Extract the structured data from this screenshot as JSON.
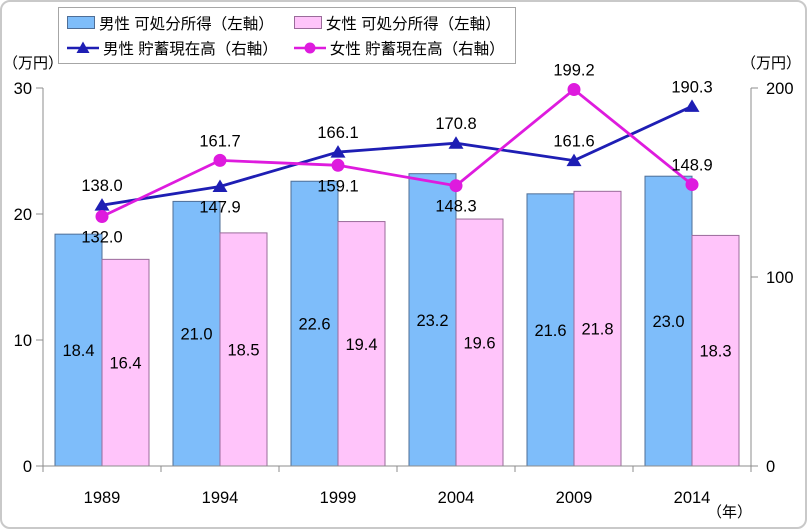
{
  "frame": {
    "border_color": "#c9c9c9",
    "background": "#ffffff"
  },
  "legend": {
    "items": [
      {
        "label": "男性 可処分所得（左軸）",
        "type": "bar",
        "fill": "#7EBDFA",
        "border": "#4F6E96"
      },
      {
        "label": "女性 可処分所得（左軸）",
        "type": "bar",
        "fill": "#FFC4FA",
        "border": "#9A6B9A"
      },
      {
        "label": "男性 貯蓄現在高（右軸）",
        "type": "line",
        "marker": "triangle",
        "color": "#1E1EB4"
      },
      {
        "label": "女性 貯蓄現在高（右軸）",
        "type": "line",
        "marker": "circle",
        "color": "#DE1BDE"
      }
    ]
  },
  "axes": {
    "left_unit": "（万円）",
    "right_unit": "（万円）",
    "x_unit": "（年）",
    "left_ticks": [
      0,
      10,
      20,
      30
    ],
    "right_ticks": [
      0,
      100,
      200
    ],
    "axis_color": "#8c8c8c",
    "text_color": "#000000"
  },
  "chart_data": {
    "type": "bar+line combo",
    "title": "",
    "categories": [
      "1989",
      "1994",
      "1999",
      "2004",
      "2009",
      "2014"
    ],
    "xlabel": "（年）",
    "ylabel_left": "（万円）",
    "ylabel_right": "（万円）",
    "ylim_left": [
      0,
      30
    ],
    "ylim_right": [
      0,
      200
    ],
    "grid": false,
    "legend_position": "top",
    "series": [
      {
        "name": "男性 可処分所得（左軸）",
        "type": "bar",
        "axis": "left",
        "values": [
          18.4,
          21.0,
          22.6,
          23.2,
          21.6,
          23.0
        ],
        "fill": "#7EBDFA",
        "border": "#4F6E96"
      },
      {
        "name": "女性 可処分所得（左軸）",
        "type": "bar",
        "axis": "left",
        "values": [
          16.4,
          18.5,
          19.4,
          19.6,
          21.8,
          18.3
        ],
        "fill": "#FFC4FA",
        "border": "#9A6B9A"
      },
      {
        "name": "男性 貯蓄現在高（右軸）",
        "type": "line",
        "marker": "triangle",
        "axis": "right",
        "values": [
          138.0,
          147.9,
          166.1,
          170.8,
          161.6,
          190.3
        ],
        "label_positions": [
          "above",
          "below",
          "above",
          "above",
          "above",
          "above"
        ],
        "color": "#1E1EB4"
      },
      {
        "name": "女性 貯蓄現在高（右軸）",
        "type": "line",
        "marker": "circle",
        "axis": "right",
        "values": [
          132.0,
          161.7,
          159.1,
          148.3,
          199.2,
          148.9
        ],
        "label_positions": [
          "below",
          "above",
          "below",
          "below",
          "above",
          "above"
        ],
        "color": "#DE1BDE"
      }
    ]
  }
}
